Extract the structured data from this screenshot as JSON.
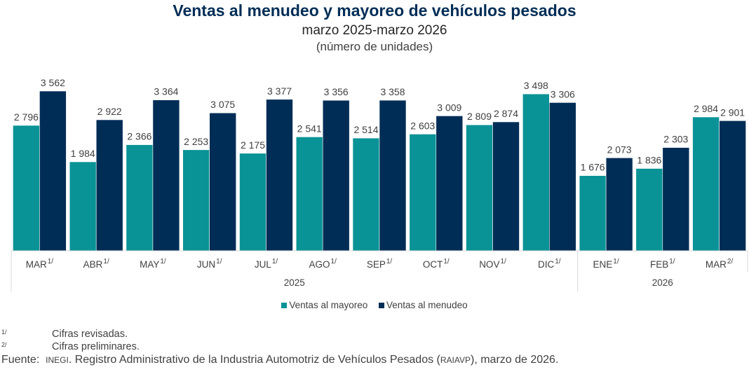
{
  "header": {
    "title": "Ventas al menudeo y mayoreo de vehículos pesados",
    "subtitle": "marzo 2025-marzo 2026",
    "units": "(número de unidades)"
  },
  "colors": {
    "mayoreo": "#0a9396",
    "menudeo": "#002d56",
    "axis": "#d9d9d9",
    "text": "#404040"
  },
  "chart_data": {
    "type": "bar",
    "title": "Ventas al menudeo y mayoreo de vehículos pesados",
    "subtitle": "marzo 2025-marzo 2026",
    "ylabel": "(número de unidades)",
    "xlabel": "",
    "ylim": [
      0,
      3562
    ],
    "grid": false,
    "legend_position": "bottom",
    "categories": [
      "MAR",
      "ABR",
      "MAY",
      "JUN",
      "JUL",
      "AGO",
      "SEP",
      "OCT",
      "NOV",
      "DIC",
      "ENE",
      "FEB",
      "MAR"
    ],
    "category_notes": [
      "1/",
      "1/",
      "1/",
      "1/",
      "1/",
      "1/",
      "1/",
      "1/",
      "1/",
      "1/",
      "1/",
      "1/",
      "2/"
    ],
    "year_groups": [
      {
        "label": "2025",
        "count": 10
      },
      {
        "label": "2026",
        "count": 3
      }
    ],
    "series": [
      {
        "name": "Ventas al mayoreo",
        "color": "#0a9396",
        "values": [
          2796,
          1984,
          2366,
          2253,
          2175,
          2541,
          2514,
          2603,
          2809,
          3498,
          1676,
          1836,
          2984
        ],
        "labels": [
          "2 796",
          "1 984",
          "2 366",
          "2 253",
          "2 175",
          "2 541",
          "2 514",
          "2 603",
          "2 809",
          "3 498",
          "1 676",
          "1 836",
          "2 984"
        ]
      },
      {
        "name": "Ventas al menudeo",
        "color": "#002d56",
        "values": [
          3562,
          2922,
          3364,
          3075,
          3377,
          3356,
          3358,
          3009,
          2874,
          3306,
          2073,
          2303,
          2901
        ],
        "labels": [
          "3 562",
          "2 922",
          "3 364",
          "3 075",
          "3 377",
          "3 356",
          "3 358",
          "3 009",
          "2 874",
          "3 306",
          "2 073",
          "2 303",
          "2 901"
        ]
      }
    ]
  },
  "legend": {
    "mayoreo_label": "Ventas al mayoreo",
    "menudeo_label": "Ventas al menudeo"
  },
  "notes": [
    {
      "mark": "1/",
      "text": "Cifras revisadas."
    },
    {
      "mark": "2/",
      "text": "Cifras preliminares."
    }
  ],
  "source": {
    "prefix": "Fuente:",
    "org": "INEGI",
    "text_a": ". Registro Administrativo de la Industria Automotriz de Vehículos Pesados (",
    "abbr": "RAIAVP",
    "text_b": "), marzo de 2026."
  }
}
